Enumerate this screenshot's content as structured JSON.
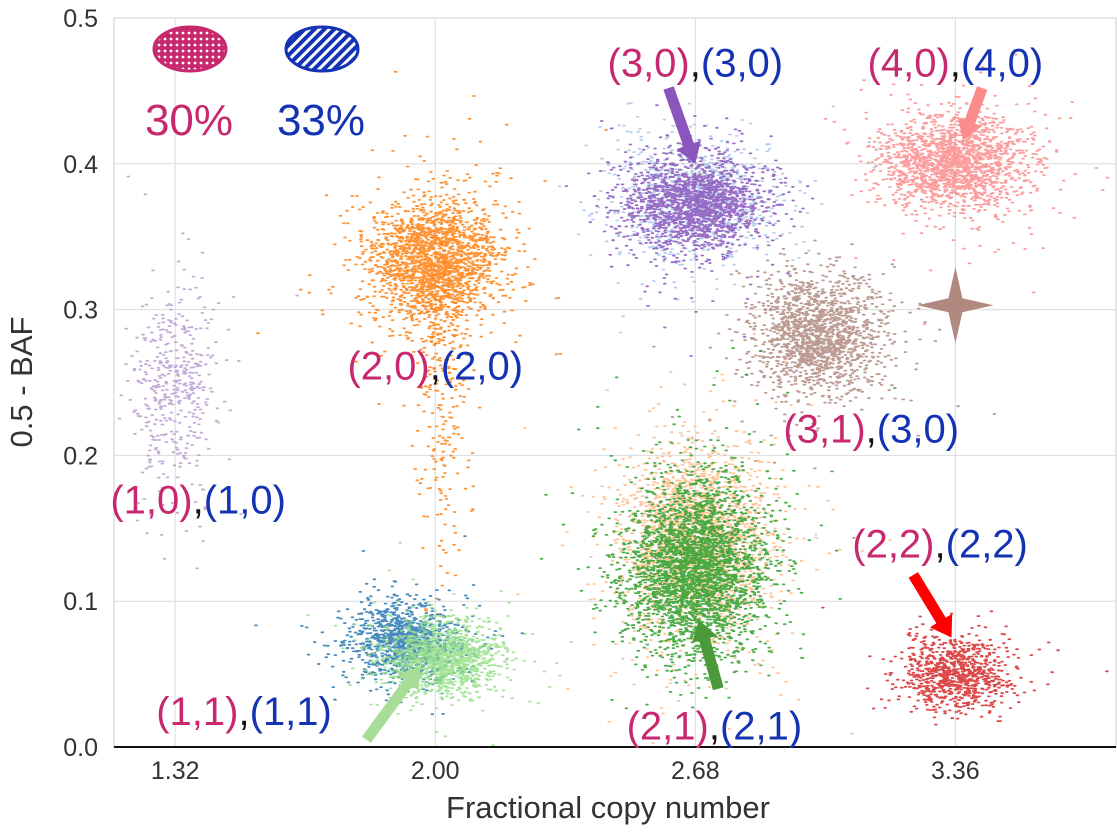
{
  "chart_data": {
    "type": "scatter",
    "title": "",
    "xlabel": "Fractional copy number",
    "ylabel": "0.5 - BAF",
    "xlim": [
      1.16,
      3.78
    ],
    "ylim": [
      0.0,
      0.5
    ],
    "xticks": [
      1.32,
      2.0,
      2.68,
      3.36
    ],
    "xtick_labels": [
      "1.32",
      "2.00",
      "2.68",
      "3.36"
    ],
    "yticks": [
      0.0,
      0.1,
      0.2,
      0.3,
      0.4,
      0.5
    ],
    "ytick_labels": [
      "0.0",
      "0.1",
      "0.2",
      "0.3",
      "0.4",
      "0.5"
    ],
    "grid": true,
    "colors": {
      "clone1": "#c8286e",
      "clone2": "#1432b4",
      "separator": "#111111",
      "axis_text": "#333333"
    },
    "legend": [
      {
        "name": "clone-1-marker",
        "label": "30%",
        "color": "#c8286e",
        "pattern": "dots"
      },
      {
        "name": "clone-2-marker",
        "label": "33%",
        "color": "#1432b4",
        "pattern": "stripes"
      }
    ],
    "clusters": [
      {
        "name": "lavender",
        "color": "#b89cd0",
        "center": [
          1.32,
          0.25
        ],
        "spread": [
          0.055,
          0.035
        ],
        "count": 450
      },
      {
        "name": "orange",
        "color": "#ff7f0e",
        "center": [
          2.0,
          0.333
        ],
        "spread": [
          0.085,
          0.022
        ],
        "count": 2000
      },
      {
        "name": "orange-tail",
        "color": "#ff7f0e",
        "center": [
          2.02,
          0.24
        ],
        "spread": [
          0.035,
          0.05
        ],
        "count": 240
      },
      {
        "name": "light-blue",
        "color": "#a8c4e6",
        "center": [
          2.68,
          0.375
        ],
        "spread": [
          0.11,
          0.02
        ],
        "count": 900
      },
      {
        "name": "purple",
        "color": "#8a56bd",
        "center": [
          2.68,
          0.373
        ],
        "spread": [
          0.09,
          0.016
        ],
        "count": 1700
      },
      {
        "name": "pink",
        "color": "#fa8c8c",
        "center": [
          3.36,
          0.4
        ],
        "spread": [
          0.095,
          0.016
        ],
        "count": 1800
      },
      {
        "name": "brown",
        "color": "#b08a80",
        "center": [
          3.0,
          0.282
        ],
        "spread": [
          0.085,
          0.02
        ],
        "count": 1600
      },
      {
        "name": "peach",
        "color": "#fdbb86",
        "center": [
          2.68,
          0.14
        ],
        "spread": [
          0.095,
          0.03
        ],
        "count": 2500
      },
      {
        "name": "green",
        "color": "#2ca02c",
        "center": [
          2.68,
          0.122
        ],
        "spread": [
          0.09,
          0.03
        ],
        "count": 3000
      },
      {
        "name": "steel-blue",
        "color": "#2878b4",
        "center": [
          1.92,
          0.072
        ],
        "spread": [
          0.07,
          0.014
        ],
        "count": 1100
      },
      {
        "name": "light-green",
        "color": "#98df8a",
        "center": [
          2.02,
          0.062
        ],
        "spread": [
          0.075,
          0.012
        ],
        "count": 1400
      },
      {
        "name": "red",
        "color": "#d62728",
        "center": [
          3.36,
          0.05
        ],
        "spread": [
          0.07,
          0.012
        ],
        "count": 900
      }
    ],
    "annotations": [
      {
        "name": "label-3-0",
        "a": "(3,0)",
        "b": "(3,0)",
        "x": 2.68,
        "y": 0.46,
        "anchor": "middle"
      },
      {
        "name": "label-4-0",
        "a": "(4,0)",
        "b": "(4,0)",
        "x": 3.36,
        "y": 0.46,
        "anchor": "middle"
      },
      {
        "name": "label-2-0",
        "a": "(2,0)",
        "b": "(2,0)",
        "x": 2.0,
        "y": 0.252,
        "anchor": "middle"
      },
      {
        "name": "label-3-1",
        "a": "(3,1)",
        "b": "(3,0)",
        "x": 3.14,
        "y": 0.209,
        "anchor": "middle"
      },
      {
        "name": "label-1-0",
        "a": "(1,0)",
        "b": "(1,0)",
        "x": 1.38,
        "y": 0.16,
        "anchor": "middle"
      },
      {
        "name": "label-2-2",
        "a": "(2,2)",
        "b": "(2,2)",
        "x": 3.32,
        "y": 0.13,
        "anchor": "middle"
      },
      {
        "name": "label-1-1",
        "a": "(1,1)",
        "b": "(1,1)",
        "x": 1.5,
        "y": 0.015,
        "anchor": "middle"
      },
      {
        "name": "label-2-1",
        "a": "(2,1)",
        "b": "(2,1)",
        "x": 2.73,
        "y": 0.005,
        "anchor": "middle"
      }
    ],
    "arrows": [
      {
        "name": "arrow-3-0",
        "color": "#8a56bd",
        "from": [
          2.61,
          0.452
        ],
        "to": [
          2.68,
          0.4
        ]
      },
      {
        "name": "arrow-4-0",
        "color": "#fa8c8c",
        "from": [
          3.43,
          0.452
        ],
        "to": [
          3.38,
          0.416
        ]
      },
      {
        "name": "arrow-2-2",
        "color": "#ff0000",
        "from": [
          3.25,
          0.118
        ],
        "to": [
          3.35,
          0.075
        ]
      },
      {
        "name": "arrow-2-1",
        "color": "#4a9a3a",
        "from": [
          2.74,
          0.04
        ],
        "to": [
          2.69,
          0.087
        ]
      },
      {
        "name": "arrow-1-1",
        "color": "#a8dd98",
        "from": [
          1.82,
          0.005
        ],
        "to": [
          1.96,
          0.055
        ]
      }
    ],
    "star": {
      "name": "star-marker",
      "color": "#b08a80",
      "at": [
        3.36,
        0.303
      ]
    }
  }
}
